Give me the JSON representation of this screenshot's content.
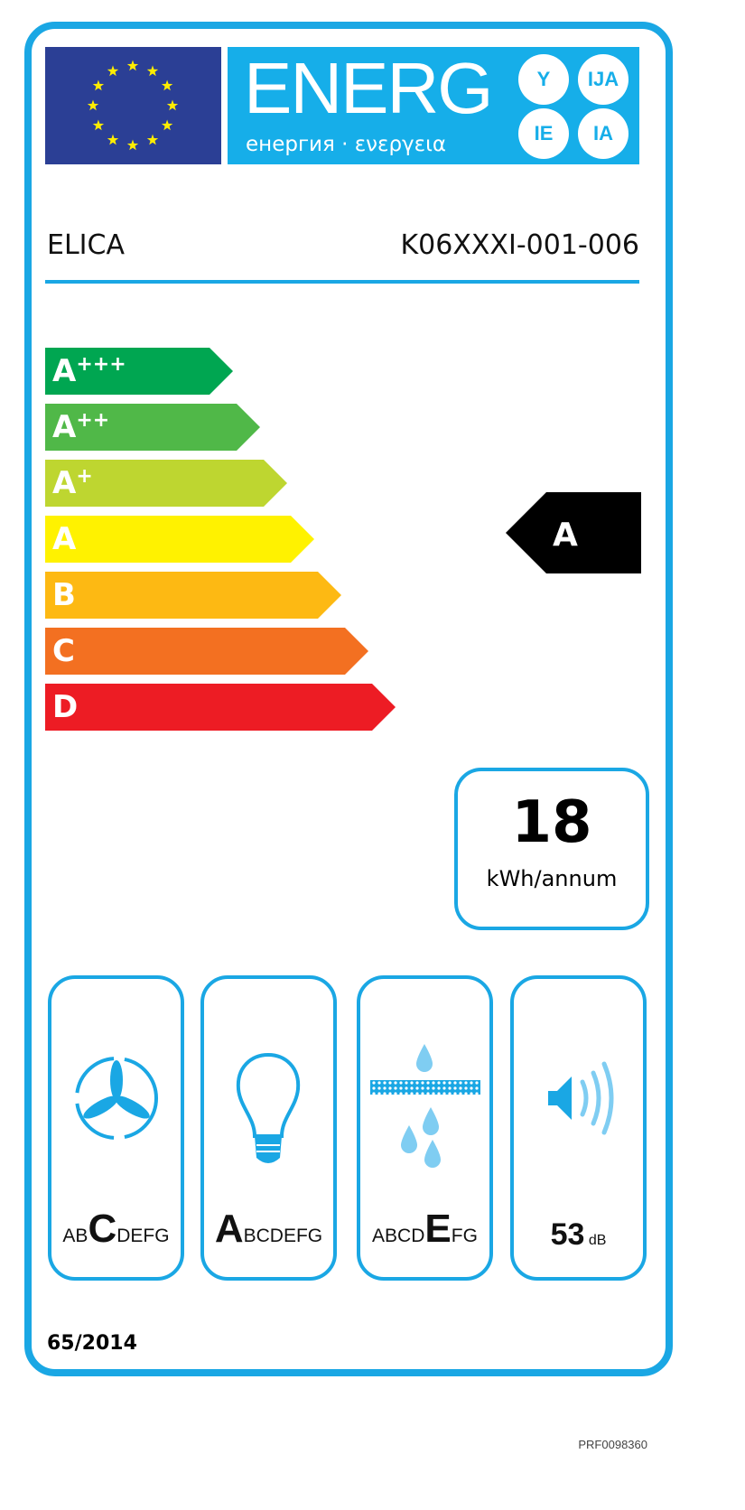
{
  "header": {
    "energy_title": "ENERG",
    "energy_subtitle": "енергия · ενεργεια",
    "language_suffixes": [
      "Y",
      "IJA",
      "IE",
      "IA"
    ]
  },
  "supplier": "ELICA",
  "model": "K06XXXI-001-006",
  "scale": [
    {
      "label": "A",
      "suffix": "+++",
      "color": "#00a651"
    },
    {
      "label": "A",
      "suffix": "++",
      "color": "#50b848"
    },
    {
      "label": "A",
      "suffix": "+",
      "color": "#bed630"
    },
    {
      "label": "A",
      "suffix": "",
      "color": "#fff200"
    },
    {
      "label": "B",
      "suffix": "",
      "color": "#fdb913"
    },
    {
      "label": "C",
      "suffix": "",
      "color": "#f37021"
    },
    {
      "label": "D",
      "suffix": "",
      "color": "#ed1c24"
    }
  ],
  "energy_class": "A",
  "consumption": {
    "value": "18",
    "unit": "kWh/annum"
  },
  "ratings": [
    {
      "icon": "fan-icon",
      "before": "AB",
      "grade": "C",
      "after": "DEFG"
    },
    {
      "icon": "light-bulb-icon",
      "before": "",
      "grade": "A",
      "after": "BCDEFG"
    },
    {
      "icon": "grease-filter-icon",
      "before": "ABCD",
      "grade": "E",
      "after": "FG"
    }
  ],
  "noise": {
    "value": "53",
    "unit": "dB",
    "icon": "speaker-icon"
  },
  "regulation": "65/2014",
  "reference": "PRF0098360",
  "colors": {
    "accent": "#1aa7e4",
    "eu_blue": "#2b3f95",
    "star": "#ffed00"
  }
}
